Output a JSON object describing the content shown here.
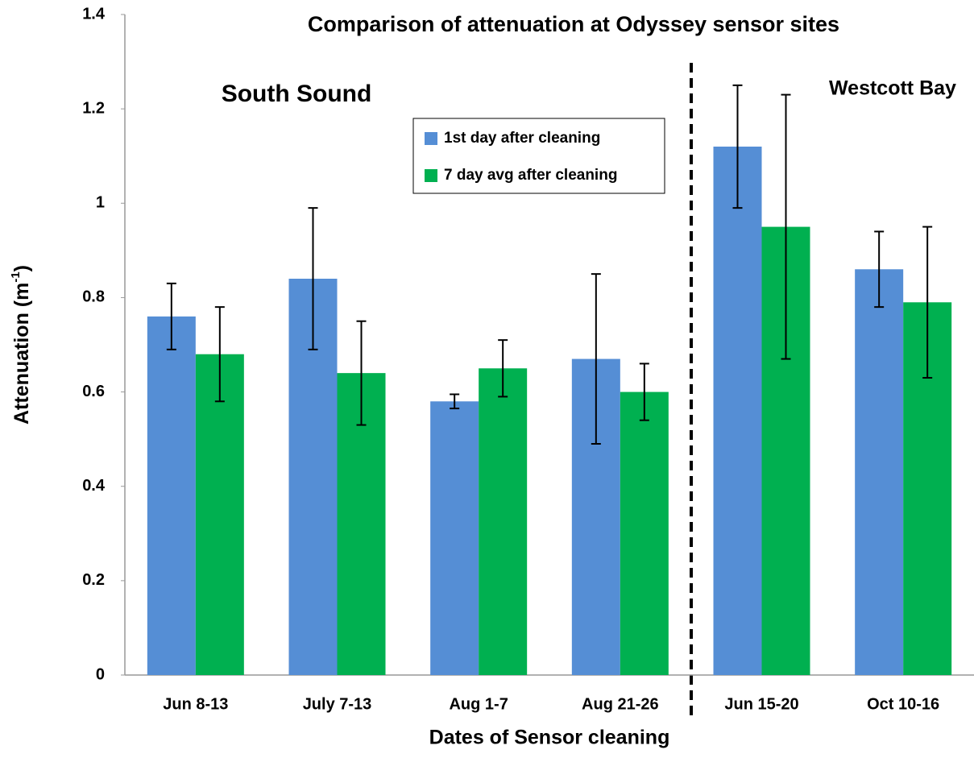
{
  "chart_data": {
    "type": "bar",
    "title": "Comparison of attenuation at Odyssey sensor sites",
    "x_label": "Dates of Sensor cleaning",
    "y_label": {
      "text": "Attenuation (m",
      "superscript": "-1",
      "suffix": ")"
    },
    "annotations": [
      "South Sound",
      "Westcott Bay"
    ],
    "categories": [
      "Jun 8-13",
      "July 7-13",
      "Aug 1-7",
      "Aug 21-26",
      "Jun 15-20",
      "Oct 10-16"
    ],
    "series": [
      {
        "name": "1st day after cleaning",
        "color": "#558ed5",
        "values": [
          0.76,
          0.84,
          0.58,
          0.67,
          1.12,
          0.86
        ],
        "errors": [
          0.07,
          0.15,
          0.015,
          0.18,
          0.13,
          0.08
        ]
      },
      {
        "name": "7 day avg after cleaning",
        "color": "#00b050",
        "values": [
          0.68,
          0.64,
          0.65,
          0.6,
          0.95,
          0.79
        ],
        "errors": [
          0.1,
          0.11,
          0.06,
          0.06,
          0.28,
          0.16
        ]
      }
    ],
    "ylim": [
      0,
      1.4
    ],
    "yticks": [
      0,
      0.2,
      0.4,
      0.6,
      0.8,
      1,
      1.2,
      1.4
    ],
    "grid": false,
    "legend": "top-center"
  }
}
